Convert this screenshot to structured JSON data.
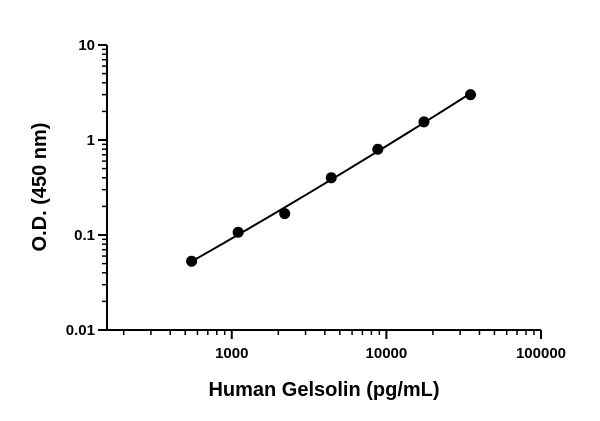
{
  "chart_data": {
    "type": "scatter",
    "xlabel": "Human Gelsolin (pg/mL)",
    "ylabel": "O.D. (450 nm)",
    "xscale": "log",
    "yscale": "log",
    "xlim": [
      156,
      100000
    ],
    "ylim": [
      0.01,
      10
    ],
    "x_ticks": [
      1000,
      10000,
      100000
    ],
    "x_tick_labels": [
      "1000",
      "10000",
      "100000"
    ],
    "y_ticks": [
      0.01,
      0.1,
      1,
      10
    ],
    "y_tick_labels": [
      "0.01",
      "0.1",
      "1",
      "10"
    ],
    "grid": false,
    "legend": "none",
    "series": [
      {
        "x": [
          550,
          1100,
          2200,
          4400,
          8800,
          17500,
          35000
        ],
        "y": [
          0.053,
          0.107,
          0.168,
          0.4,
          0.8,
          1.55,
          3.0
        ],
        "marker": "filled-circle",
        "fit_curve": true,
        "color": "#000000"
      }
    ]
  }
}
